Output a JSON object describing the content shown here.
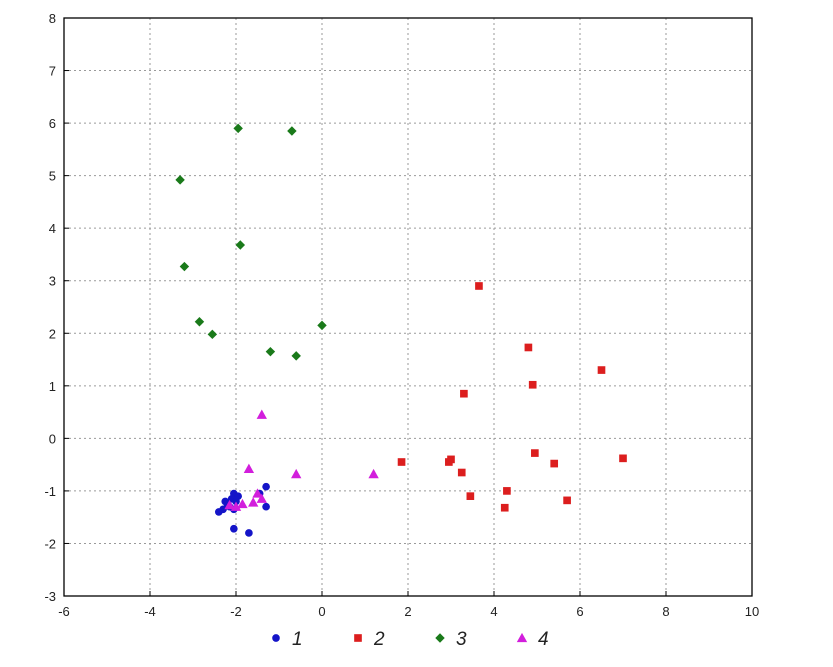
{
  "chart_data": {
    "type": "scatter",
    "title": "",
    "xlabel": "",
    "ylabel": "",
    "xlim": [
      -6,
      10
    ],
    "ylim": [
      -3,
      8
    ],
    "xticks": [
      -6,
      -4,
      -2,
      0,
      2,
      4,
      6,
      8,
      10
    ],
    "yticks": [
      -3,
      -2,
      -1,
      0,
      1,
      2,
      3,
      4,
      5,
      6,
      7,
      8
    ],
    "grid": true,
    "legend_position": "bottom",
    "series": [
      {
        "name": "1",
        "marker": "circle",
        "color": "#1414c8",
        "points": [
          [
            -2.05,
            -1.05
          ],
          [
            -1.95,
            -1.1
          ],
          [
            -2.1,
            -1.15
          ],
          [
            -2.2,
            -1.25
          ],
          [
            -2.0,
            -1.2
          ],
          [
            -2.15,
            -1.3
          ],
          [
            -2.3,
            -1.35
          ],
          [
            -2.4,
            -1.4
          ],
          [
            -2.05,
            -1.35
          ],
          [
            -2.25,
            -1.2
          ],
          [
            -1.3,
            -0.92
          ],
          [
            -1.45,
            -1.05
          ],
          [
            -1.3,
            -1.3
          ],
          [
            -2.05,
            -1.72
          ],
          [
            -1.7,
            -1.8
          ]
        ]
      },
      {
        "name": "2",
        "marker": "square",
        "color": "#dc1e1e",
        "points": [
          [
            3.65,
            2.9
          ],
          [
            4.8,
            1.73
          ],
          [
            6.5,
            1.3
          ],
          [
            4.9,
            1.02
          ],
          [
            3.3,
            0.85
          ],
          [
            1.85,
            -0.45
          ],
          [
            2.95,
            -0.45
          ],
          [
            3.0,
            -0.4
          ],
          [
            3.25,
            -0.65
          ],
          [
            3.45,
            -1.1
          ],
          [
            4.3,
            -1.0
          ],
          [
            4.25,
            -1.32
          ],
          [
            4.95,
            -0.28
          ],
          [
            5.4,
            -0.48
          ],
          [
            5.7,
            -1.18
          ],
          [
            7.0,
            -0.38
          ]
        ]
      },
      {
        "name": "3",
        "marker": "diamond",
        "color": "#1a7a1a",
        "points": [
          [
            -1.95,
            5.9
          ],
          [
            -0.7,
            5.85
          ],
          [
            -3.3,
            4.92
          ],
          [
            -1.9,
            3.68
          ],
          [
            -3.2,
            3.27
          ],
          [
            -2.85,
            2.22
          ],
          [
            -2.55,
            1.98
          ],
          [
            0.0,
            2.15
          ],
          [
            -1.2,
            1.65
          ],
          [
            -0.6,
            1.57
          ]
        ]
      },
      {
        "name": "4",
        "marker": "triangle",
        "color": "#d21edc",
        "points": [
          [
            -1.4,
            0.45
          ],
          [
            -1.7,
            -0.58
          ],
          [
            -0.6,
            -0.68
          ],
          [
            1.2,
            -0.68
          ],
          [
            -1.5,
            -1.05
          ],
          [
            -1.6,
            -1.22
          ],
          [
            -1.85,
            -1.25
          ],
          [
            -2.0,
            -1.3
          ],
          [
            -2.15,
            -1.27
          ],
          [
            -1.4,
            -1.15
          ]
        ]
      }
    ]
  }
}
